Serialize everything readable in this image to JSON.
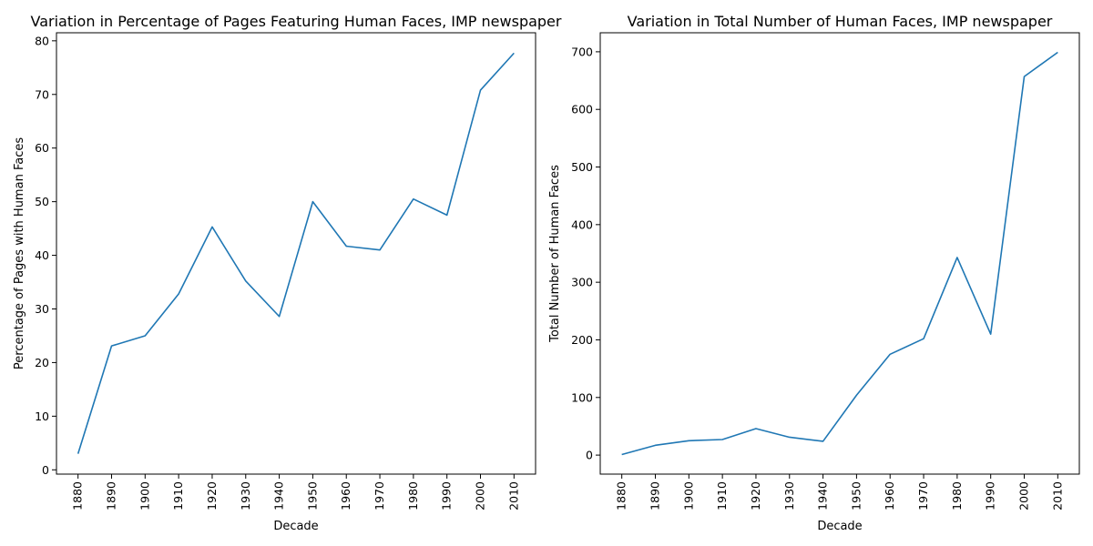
{
  "chart_data": [
    {
      "type": "line",
      "title": "Variation in Percentage of Pages Featuring Human Faces, IMP newspaper",
      "xlabel": "Decade",
      "ylabel": "Percentage of Pages with Human Faces",
      "x": [
        "1880",
        "1890",
        "1900",
        "1910",
        "1920",
        "1930",
        "1940",
        "1950",
        "1960",
        "1970",
        "1980",
        "1990",
        "2000",
        "2010"
      ],
      "yticks": [
        0,
        10,
        20,
        30,
        40,
        50,
        60,
        70,
        80
      ],
      "ylim": [
        -0.8,
        81.5
      ],
      "grid": false,
      "color": "#1f77b4",
      "series": [
        {
          "values": [
            3.0,
            23.1,
            25.0,
            32.8,
            45.3,
            35.2,
            28.6,
            50.0,
            41.7,
            41.0,
            50.5,
            47.5,
            70.8,
            77.7
          ]
        }
      ]
    },
    {
      "type": "line",
      "title": "Variation in Total Number of Human Faces, IMP newspaper",
      "xlabel": "Decade",
      "ylabel": "Total Number of Human Faces",
      "x": [
        "1880",
        "1890",
        "1900",
        "1910",
        "1920",
        "1930",
        "1940",
        "1950",
        "1960",
        "1970",
        "1980",
        "1990",
        "2000",
        "2010"
      ],
      "yticks": [
        0,
        100,
        200,
        300,
        400,
        500,
        600,
        700
      ],
      "ylim": [
        -33,
        733
      ],
      "grid": false,
      "color": "#1f77b4",
      "series": [
        {
          "values": [
            1,
            17,
            25,
            27,
            46,
            31,
            24,
            104,
            175,
            202,
            343,
            210,
            657,
            699
          ]
        }
      ]
    }
  ]
}
